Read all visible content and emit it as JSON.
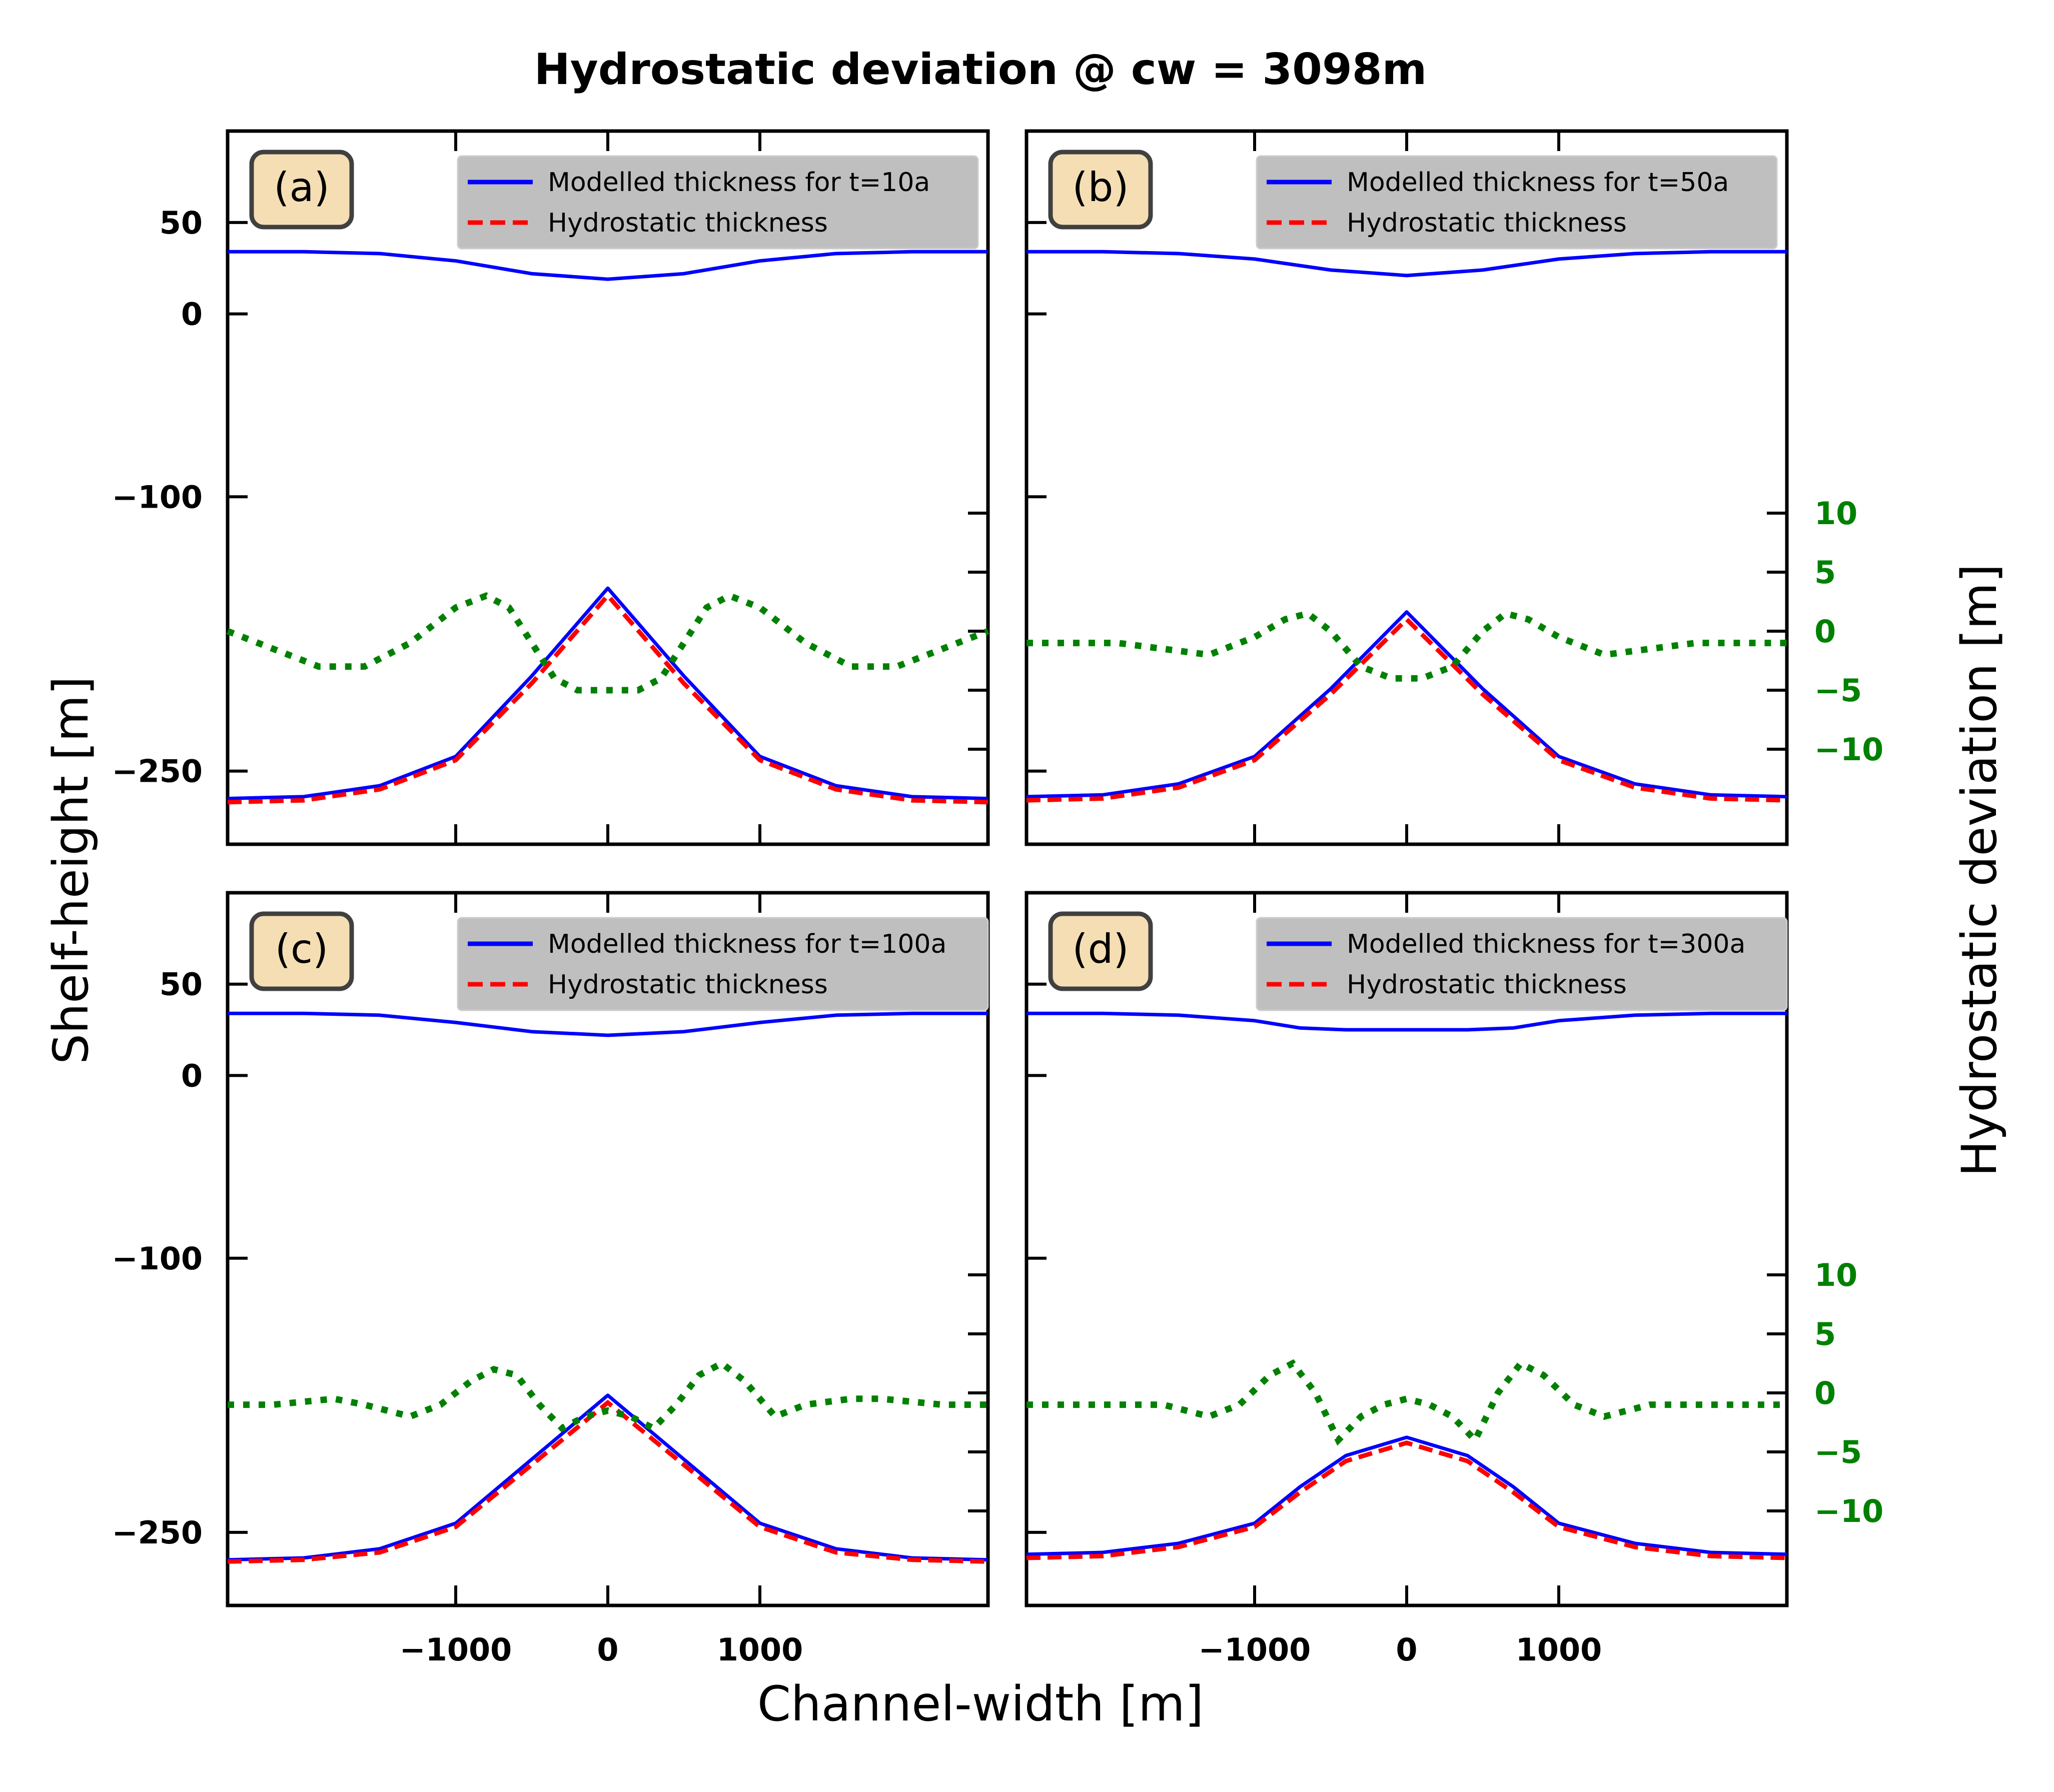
{
  "figure": {
    "title": "Hydrostatic deviation @ cw = 3098m",
    "xlabel": "Channel-width [m]",
    "ylabel_left": "Shelf-height [m]",
    "ylabel_right": "Hydrostatic deviation [m]"
  },
  "axes": {
    "x_ticks": [
      -1000,
      0,
      1000
    ],
    "x_tick_labels": [
      "−1000",
      "0",
      "1000"
    ],
    "xlim": [
      -2500,
      2500
    ],
    "y_ticks": [
      50,
      0,
      -100,
      -250
    ],
    "y_tick_labels": [
      "50",
      "0",
      "−100",
      "−250"
    ],
    "ylim": [
      -290,
      100
    ],
    "y2_ticks": [
      10,
      5,
      0,
      -5,
      -10
    ],
    "y2_tick_labels": [
      "10",
      "5",
      "0",
      "−5",
      "−10"
    ],
    "y2_axis_shown_on": [
      "b",
      "d"
    ]
  },
  "legend": {
    "hydrostatic_label": "Hydrostatic thickness",
    "placement": "top-right"
  },
  "colors": {
    "modelled": "#0000ff",
    "hydrostatic": "#ff0000",
    "deviation": "#008000",
    "panel_label_bg": "#f5deb3",
    "legend_bg": "#bfbfbf"
  },
  "chart_data": [
    {
      "panel": "(a)",
      "type": "line",
      "series": [
        {
          "name": "Modelled thickness for t=10a",
          "x": [
            -2500,
            -2000,
            -1500,
            -1000,
            -500,
            0,
            500,
            1000,
            1500,
            2000,
            2500
          ],
          "top": [
            34,
            34,
            33,
            29,
            22,
            19,
            22,
            29,
            33,
            34,
            34
          ],
          "bottom": [
            -265,
            -264,
            -258,
            -242,
            -198,
            -150,
            -198,
            -242,
            -258,
            -264,
            -265
          ]
        },
        {
          "name": "Hydrostatic thickness",
          "x": [
            -2500,
            -2000,
            -1500,
            -1000,
            -500,
            0,
            500,
            1000,
            1500,
            2000,
            2500
          ],
          "bottom": [
            -267,
            -266,
            -260,
            -244,
            -202,
            -154,
            -202,
            -244,
            -260,
            -266,
            -267
          ]
        }
      ],
      "deviation": {
        "x": [
          -2500,
          -2300,
          -2100,
          -1900,
          -1600,
          -1300,
          -1000,
          -800,
          -650,
          -500,
          -350,
          -200,
          0,
          200,
          350,
          500,
          650,
          800,
          1000,
          1300,
          1600,
          1900,
          2100,
          2300,
          2500
        ],
        "y": [
          0,
          -1,
          -2,
          -3,
          -3,
          -1,
          2,
          3,
          2,
          -1,
          -4,
          -5,
          -5,
          -5,
          -4,
          -1,
          2,
          3,
          2,
          -1,
          -3,
          -3,
          -2,
          -1,
          0
        ]
      }
    },
    {
      "panel": "(b)",
      "type": "line",
      "series": [
        {
          "name": "Modelled thickness for t=50a",
          "x": [
            -2500,
            -2000,
            -1500,
            -1000,
            -500,
            0,
            500,
            1000,
            1500,
            2000,
            2500
          ],
          "top": [
            34,
            34,
            33,
            30,
            24,
            21,
            24,
            30,
            33,
            34,
            34
          ],
          "bottom": [
            -264,
            -263,
            -257,
            -242,
            -205,
            -163,
            -205,
            -242,
            -257,
            -263,
            -264
          ]
        },
        {
          "name": "Hydrostatic thickness",
          "x": [
            -2500,
            -2000,
            -1500,
            -1000,
            -500,
            0,
            500,
            1000,
            1500,
            2000,
            2500
          ],
          "bottom": [
            -266,
            -265,
            -259,
            -244,
            -208,
            -167,
            -208,
            -244,
            -259,
            -265,
            -266
          ]
        }
      ],
      "deviation": {
        "x": [
          -2500,
          -2200,
          -1900,
          -1600,
          -1300,
          -1000,
          -800,
          -650,
          -500,
          -300,
          -100,
          100,
          300,
          500,
          650,
          800,
          1000,
          1300,
          1600,
          1900,
          2200,
          2500
        ],
        "y": [
          -1,
          -1,
          -1,
          -1.5,
          -2,
          -0.5,
          1,
          1.5,
          0,
          -3,
          -4,
          -4,
          -3,
          0,
          1.5,
          1,
          -0.5,
          -2,
          -1.5,
          -1,
          -1,
          -1
        ]
      }
    },
    {
      "panel": "(c)",
      "type": "line",
      "series": [
        {
          "name": "Modelled thickness for t=100a",
          "x": [
            -2500,
            -2000,
            -1500,
            -1000,
            -500,
            0,
            500,
            1000,
            1500,
            2000,
            2500
          ],
          "top": [
            34,
            34,
            33,
            29,
            24,
            22,
            24,
            29,
            33,
            34,
            34
          ],
          "bottom": [
            -265,
            -264,
            -259,
            -245,
            -210,
            -175,
            -210,
            -245,
            -259,
            -264,
            -265
          ]
        },
        {
          "name": "Hydrostatic thickness",
          "x": [
            -2500,
            -2000,
            -1500,
            -1000,
            -500,
            0,
            500,
            1000,
            1500,
            2000,
            2500
          ],
          "bottom": [
            -266,
            -265,
            -261,
            -247,
            -213,
            -179,
            -213,
            -247,
            -261,
            -265,
            -266
          ]
        }
      ],
      "deviation": {
        "x": [
          -2500,
          -2200,
          -1800,
          -1600,
          -1300,
          -1100,
          -900,
          -750,
          -600,
          -450,
          -300,
          -150,
          0,
          150,
          300,
          450,
          600,
          750,
          900,
          1100,
          1300,
          1600,
          1800,
          2200,
          2500
        ],
        "y": [
          -1,
          -1,
          -0.5,
          -1,
          -2,
          -1,
          1,
          2,
          1.5,
          -1,
          -3,
          -2,
          -1.5,
          -2,
          -3,
          -1,
          1.5,
          2.5,
          1,
          -2,
          -1,
          -0.5,
          -0.5,
          -1,
          -1
        ]
      }
    },
    {
      "panel": "(d)",
      "type": "line",
      "series": [
        {
          "name": "Modelled thickness for t=300a",
          "x": [
            -2500,
            -2000,
            -1500,
            -1000,
            -700,
            -400,
            0,
            400,
            700,
            1000,
            1500,
            2000,
            2500
          ],
          "top": [
            34,
            34,
            33,
            30,
            26,
            25,
            25,
            25,
            26,
            30,
            33,
            34,
            34
          ],
          "bottom": [
            -262,
            -261,
            -256,
            -245,
            -225,
            -208,
            -198,
            -208,
            -225,
            -245,
            -256,
            -261,
            -262
          ]
        },
        {
          "name": "Hydrostatic thickness",
          "x": [
            -2500,
            -2000,
            -1500,
            -1000,
            -700,
            -400,
            0,
            400,
            700,
            1000,
            1500,
            2000,
            2500
          ],
          "bottom": [
            -264,
            -263,
            -258,
            -247,
            -228,
            -211,
            -201,
            -211,
            -228,
            -247,
            -258,
            -263,
            -264
          ]
        }
      ],
      "deviation": {
        "x": [
          -2500,
          -2200,
          -1900,
          -1600,
          -1300,
          -1100,
          -900,
          -750,
          -600,
          -450,
          -300,
          -150,
          0,
          150,
          300,
          450,
          600,
          750,
          900,
          1100,
          1300,
          1600,
          1900,
          2200,
          2500
        ],
        "y": [
          -1,
          -1,
          -1,
          -1,
          -2,
          -1,
          1.5,
          2.5,
          0,
          -4,
          -2,
          -1,
          -0.5,
          -1,
          -2,
          -4,
          0,
          2.5,
          1.5,
          -1,
          -2,
          -1,
          -1,
          -1,
          -1
        ]
      }
    }
  ]
}
